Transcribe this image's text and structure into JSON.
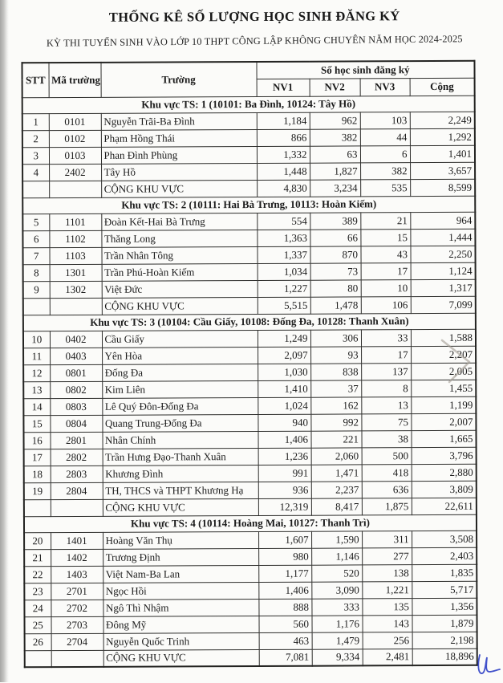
{
  "page": {
    "title": "THỐNG KÊ SỐ LƯỢNG HỌC SINH ĐĂNG KÝ",
    "subtitle": "KỲ THI TUYỂN SINH VÀO LỚP 10 THPT CÔNG LẬP KHÔNG CHUYÊN NĂM HỌC 2024-2025"
  },
  "table": {
    "headers": {
      "stt": "STT",
      "ma_truong": "Mã trường",
      "truong": "Trường",
      "group": "Số học sinh đăng ký",
      "nv1": "NV1",
      "nv2": "NV2",
      "nv3": "NV3",
      "cong": "Cộng"
    },
    "total_row_label": "CỘNG KHU VỰC",
    "sections": [
      {
        "title": "Khu vực TS: 1 (10101: Ba Đình, 10124: Tây Hồ)",
        "rows": [
          {
            "stt": "1",
            "code": "0101",
            "school": "Nguyễn Trãi-Ba Đình",
            "nv1": "1,184",
            "nv2": "962",
            "nv3": "103",
            "total": "2,249"
          },
          {
            "stt": "2",
            "code": "0102",
            "school": "Phạm Hồng Thái",
            "nv1": "866",
            "nv2": "382",
            "nv3": "44",
            "total": "1,292"
          },
          {
            "stt": "3",
            "code": "0103",
            "school": "Phan Đình Phùng",
            "nv1": "1,332",
            "nv2": "63",
            "nv3": "6",
            "total": "1,401"
          },
          {
            "stt": "4",
            "code": "2402",
            "school": "Tây Hồ",
            "nv1": "1,448",
            "nv2": "1,827",
            "nv3": "382",
            "total": "3,657"
          }
        ],
        "total": {
          "nv1": "4,830",
          "nv2": "3,234",
          "nv3": "535",
          "total": "8,599"
        }
      },
      {
        "title": "Khu vực TS: 2 (10111: Hai Bà Trưng, 10113: Hoàn Kiếm)",
        "rows": [
          {
            "stt": "5",
            "code": "1101",
            "school": "Đoàn Kết-Hai Bà Trưng",
            "nv1": "554",
            "nv2": "389",
            "nv3": "21",
            "total": "964"
          },
          {
            "stt": "6",
            "code": "1102",
            "school": "Thăng Long",
            "nv1": "1,363",
            "nv2": "66",
            "nv3": "15",
            "total": "1,444"
          },
          {
            "stt": "7",
            "code": "1103",
            "school": "Trần Nhân Tông",
            "nv1": "1,337",
            "nv2": "870",
            "nv3": "43",
            "total": "2,250"
          },
          {
            "stt": "8",
            "code": "1301",
            "school": "Trần Phú-Hoàn Kiếm",
            "nv1": "1,034",
            "nv2": "73",
            "nv3": "17",
            "total": "1,124"
          },
          {
            "stt": "9",
            "code": "1302",
            "school": "Việt Đức",
            "nv1": "1,227",
            "nv2": "80",
            "nv3": "10",
            "total": "1,317"
          }
        ],
        "total": {
          "nv1": "5,515",
          "nv2": "1,478",
          "nv3": "106",
          "total": "7,099"
        }
      },
      {
        "title": "Khu vực TS: 3 (10104: Cầu Giấy, 10108: Đống Đa, 10128: Thanh Xuân)",
        "rows": [
          {
            "stt": "10",
            "code": "0402",
            "school": "Cầu Giấy",
            "nv1": "1,249",
            "nv2": "306",
            "nv3": "33",
            "total": "1,588"
          },
          {
            "stt": "11",
            "code": "0403",
            "school": "Yên Hòa",
            "nv1": "2,097",
            "nv2": "93",
            "nv3": "17",
            "total": "2,207"
          },
          {
            "stt": "12",
            "code": "0801",
            "school": "Đống Đa",
            "nv1": "1,030",
            "nv2": "838",
            "nv3": "137",
            "total": "2,005"
          },
          {
            "stt": "13",
            "code": "0802",
            "school": "Kim Liên",
            "nv1": "1,410",
            "nv2": "37",
            "nv3": "8",
            "total": "1,455"
          },
          {
            "stt": "14",
            "code": "0803",
            "school": "Lê Quý Đôn-Đống Đa",
            "nv1": "1,024",
            "nv2": "162",
            "nv3": "13",
            "total": "1,199"
          },
          {
            "stt": "15",
            "code": "0804",
            "school": "Quang Trung-Đống Đa",
            "nv1": "940",
            "nv2": "992",
            "nv3": "75",
            "total": "2,007"
          },
          {
            "stt": "16",
            "code": "2801",
            "school": "Nhân Chính",
            "nv1": "1,406",
            "nv2": "221",
            "nv3": "38",
            "total": "1,665"
          },
          {
            "stt": "17",
            "code": "2802",
            "school": "Trần Hưng Đạo-Thanh Xuân",
            "nv1": "1,236",
            "nv2": "2,060",
            "nv3": "500",
            "total": "3,796"
          },
          {
            "stt": "18",
            "code": "2803",
            "school": "Khương Đình",
            "nv1": "991",
            "nv2": "1,471",
            "nv3": "418",
            "total": "2,880"
          },
          {
            "stt": "19",
            "code": "2804",
            "school": "TH, THCS và THPT Khương Hạ",
            "nv1": "936",
            "nv2": "2,237",
            "nv3": "636",
            "total": "3,809"
          }
        ],
        "total": {
          "nv1": "12,319",
          "nv2": "8,417",
          "nv3": "1,875",
          "total": "22,611"
        }
      },
      {
        "title": "Khu vực TS: 4 (10114: Hoàng Mai, 10127: Thanh Trì)",
        "rows": [
          {
            "stt": "20",
            "code": "1401",
            "school": "Hoàng Văn Thụ",
            "nv1": "1,607",
            "nv2": "1,590",
            "nv3": "311",
            "total": "3,508"
          },
          {
            "stt": "21",
            "code": "1402",
            "school": "Trương Định",
            "nv1": "980",
            "nv2": "1,146",
            "nv3": "277",
            "total": "2,403"
          },
          {
            "stt": "22",
            "code": "1403",
            "school": "Việt Nam-Ba Lan",
            "nv1": "1,177",
            "nv2": "520",
            "nv3": "138",
            "total": "1,835"
          },
          {
            "stt": "23",
            "code": "2701",
            "school": "Ngọc Hồi",
            "nv1": "1,406",
            "nv2": "3,090",
            "nv3": "1,221",
            "total": "5,717"
          },
          {
            "stt": "24",
            "code": "2702",
            "school": "Ngô Thì Nhậm",
            "nv1": "888",
            "nv2": "333",
            "nv3": "135",
            "total": "1,356"
          },
          {
            "stt": "25",
            "code": "2703",
            "school": "Đông Mỹ",
            "nv1": "560",
            "nv2": "1,176",
            "nv3": "143",
            "total": "1,879"
          },
          {
            "stt": "26",
            "code": "2704",
            "school": "Nguyễn Quốc Trinh",
            "nv1": "463",
            "nv2": "1,479",
            "nv3": "256",
            "total": "2,198"
          }
        ],
        "total": {
          "nv1": "7,081",
          "nv2": "9,334",
          "nv3": "2,481",
          "total": "18,896"
        }
      }
    ]
  },
  "annotations": {
    "pencil_scribble": {
      "description": "faint pencil zigzag over totals of rows 10-13",
      "color": "#a39d93"
    },
    "blue_pen_mark": {
      "description": "handwritten blue initial below bottom-right of table",
      "color": "#2c3ec4"
    }
  }
}
